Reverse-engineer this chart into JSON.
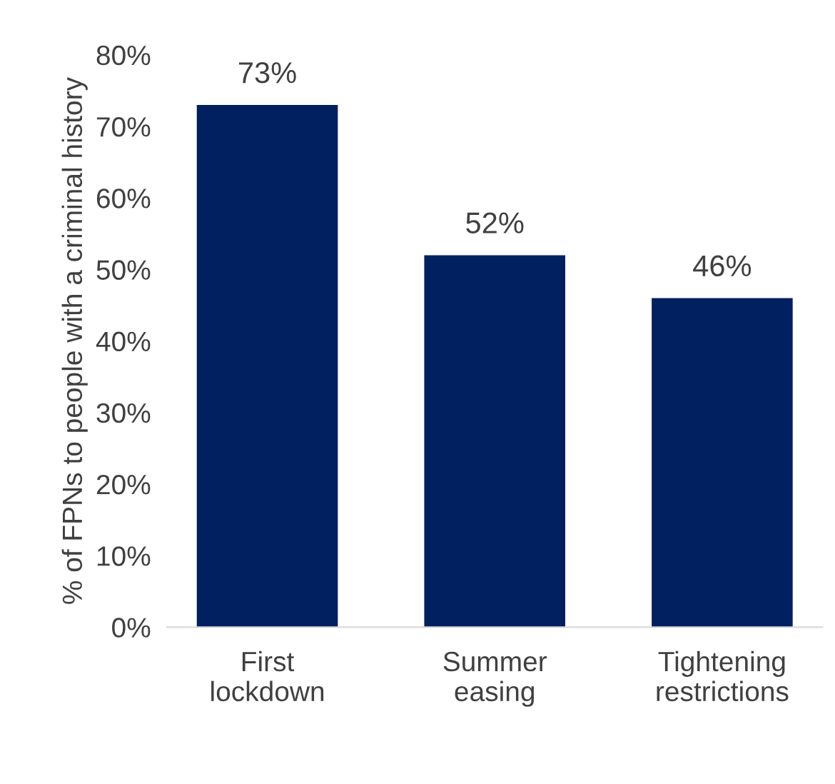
{
  "chart_data": {
    "type": "bar",
    "ylabel": "% of FPNs to people with a criminal history",
    "categories": [
      "First\nlockdown",
      "Summer\neasing",
      "Tightening\nrestrictions"
    ],
    "values": [
      73,
      52,
      46
    ],
    "value_labels": [
      "73%",
      "52%",
      "46%"
    ],
    "color": "#002060",
    "ylim": [
      0,
      80
    ],
    "yticks": [
      {
        "value": 0,
        "label": "0%"
      },
      {
        "value": 10,
        "label": "10%"
      },
      {
        "value": 20,
        "label": "20%"
      },
      {
        "value": 30,
        "label": "30%"
      },
      {
        "value": 40,
        "label": "40%"
      },
      {
        "value": 50,
        "label": "50%"
      },
      {
        "value": 60,
        "label": "60%"
      },
      {
        "value": 70,
        "label": "70%"
      },
      {
        "value": 80,
        "label": "80%"
      }
    ],
    "grid": false,
    "legend": false
  }
}
